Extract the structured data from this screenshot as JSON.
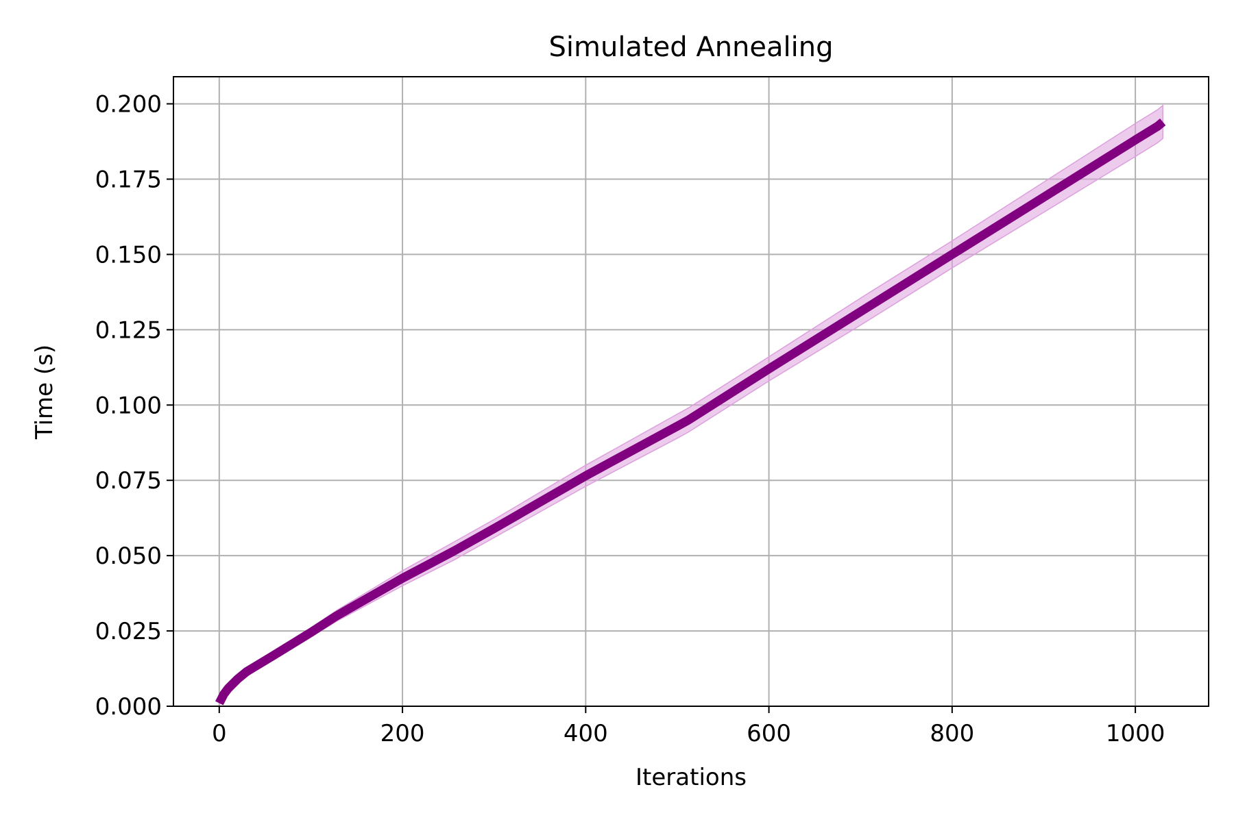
{
  "chart_data": {
    "type": "line",
    "title": "Simulated Annealing",
    "xlabel": "Iterations",
    "ylabel": "Time (s)",
    "xlim": [
      -50,
      1080
    ],
    "ylim": [
      0,
      0.209
    ],
    "x_ticks": [
      0,
      200,
      400,
      600,
      800,
      1000
    ],
    "x_tick_labels": [
      "0",
      "200",
      "400",
      "600",
      "800",
      "1000"
    ],
    "y_ticks": [
      0,
      0.025,
      0.05,
      0.075,
      0.1,
      0.125,
      0.15,
      0.175,
      0.2
    ],
    "y_tick_labels": [
      "0.000",
      "0.025",
      "0.050",
      "0.075",
      "0.100",
      "0.125",
      "0.150",
      "0.175",
      "0.200"
    ],
    "grid": true,
    "series": [
      {
        "color": "#800080",
        "band_color": "#dda0dd",
        "x": [
          0,
          5,
          10,
          20,
          30,
          60,
          100,
          128,
          200,
          256,
          300,
          400,
          500,
          512,
          600,
          700,
          800,
          900,
          1000,
          1024,
          1030
        ],
        "y": [
          0.001,
          0.004,
          0.006,
          0.009,
          0.0115,
          0.017,
          0.0245,
          0.03,
          0.0425,
          0.0515,
          0.059,
          0.0765,
          0.093,
          0.095,
          0.112,
          0.131,
          0.15,
          0.169,
          0.188,
          0.1925,
          0.194
        ],
        "band_halfwidth": [
          0.0005,
          0.001,
          0.001,
          0.001,
          0.001,
          0.0012,
          0.0015,
          0.0018,
          0.0025,
          0.003,
          0.003,
          0.0035,
          0.004,
          0.004,
          0.004,
          0.0045,
          0.0045,
          0.005,
          0.0055,
          0.0055,
          0.0055
        ]
      }
    ]
  }
}
